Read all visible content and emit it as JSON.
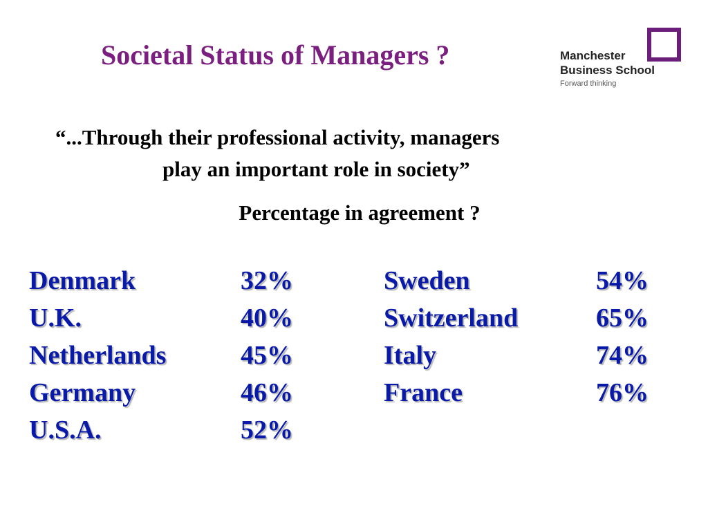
{
  "slide": {
    "title": "Societal Status of Managers ?",
    "logo": {
      "line1": "Manchester",
      "line2": "Business School",
      "tagline": "Forward thinking"
    },
    "quote_line1": "“...Through their professional activity, managers",
    "quote_line2": "play an important role in society”",
    "subtitle": "Percentage in agreement ?"
  },
  "table": {
    "left": [
      {
        "country": "Denmark",
        "value": "32%"
      },
      {
        "country": "U.K.",
        "value": "40%"
      },
      {
        "country": "Netherlands",
        "value": "45%"
      },
      {
        "country": "Germany",
        "value": "46%"
      },
      {
        "country": "U.S.A.",
        "value": "52%"
      }
    ],
    "right": [
      {
        "country": "Sweden",
        "value": "54%"
      },
      {
        "country": "Switzerland",
        "value": "65%"
      },
      {
        "country": "Italy",
        "value": "74%"
      },
      {
        "country": "France",
        "value": "76%"
      }
    ]
  },
  "colors": {
    "title": "#7a1f7f",
    "data_text": "#0a1aa8",
    "logo_square": "#6b1f7a"
  }
}
